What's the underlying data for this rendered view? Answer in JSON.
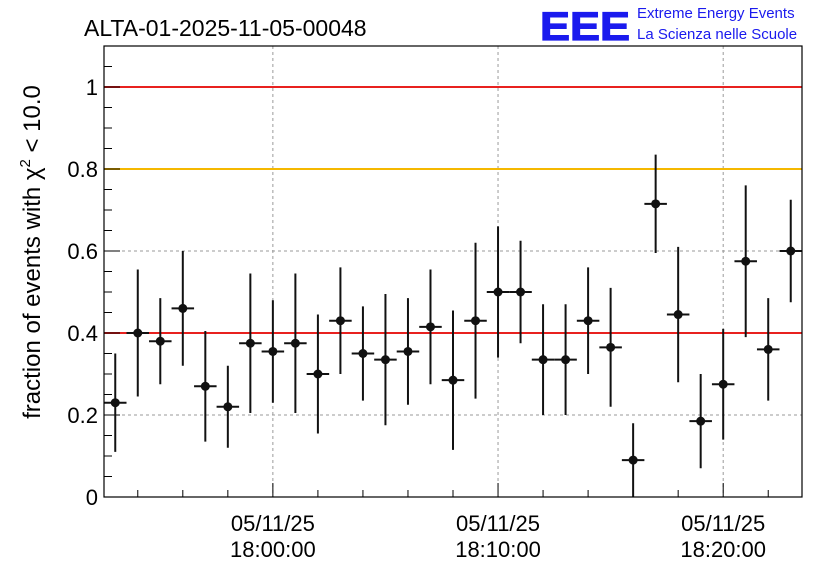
{
  "chart_data": {
    "type": "scatter",
    "title": "ALTA-01-2025-11-05-00048",
    "logo": {
      "letters": "EEE",
      "line1": "Extreme Energy Events",
      "line2": "La Scienza nelle Scuole",
      "color": "#1a1aee"
    },
    "ylabel_pre": "fraction of events with ",
    "ylabel_chi": "χ",
    "ylabel_sup": "2",
    "ylabel_post": " < 10.0",
    "ylim": [
      0,
      1.1
    ],
    "yticks": [
      {
        "value": 0,
        "label": "0"
      },
      {
        "value": 0.2,
        "label": "0.2"
      },
      {
        "value": 0.4,
        "label": "0.4"
      },
      {
        "value": 0.6,
        "label": "0.6"
      },
      {
        "value": 0.8,
        "label": "0.8"
      },
      {
        "value": 1,
        "label": "1"
      }
    ],
    "xlim_minutes": [
      -7.5,
      23.5
    ],
    "xticks": [
      {
        "minute": 0,
        "date": "05/11/25",
        "time": "18:00:00"
      },
      {
        "minute": 10,
        "date": "05/11/25",
        "time": "18:10:00"
      },
      {
        "minute": 20,
        "date": "05/11/25",
        "time": "18:20:00"
      }
    ],
    "grid": true,
    "reference_lines": [
      {
        "value": 1.0,
        "color": "#e8211f"
      },
      {
        "value": 0.8,
        "color": "#f5b800"
      },
      {
        "value": 0.4,
        "color": "#e8211f"
      }
    ],
    "marker_color": "#111111",
    "points": [
      {
        "x": -7,
        "y": 0.23,
        "err": 0.12
      },
      {
        "x": -6,
        "y": 0.4,
        "err": 0.155
      },
      {
        "x": -5,
        "y": 0.38,
        "err": 0.105
      },
      {
        "x": -4,
        "y": 0.46,
        "err": 0.14
      },
      {
        "x": -3,
        "y": 0.27,
        "err": 0.135
      },
      {
        "x": -2,
        "y": 0.22,
        "err": 0.1
      },
      {
        "x": -1,
        "y": 0.375,
        "err": 0.17
      },
      {
        "x": 0,
        "y": 0.355,
        "err": 0.125
      },
      {
        "x": 1,
        "y": 0.375,
        "err": 0.17
      },
      {
        "x": 2,
        "y": 0.3,
        "err": 0.145
      },
      {
        "x": 3,
        "y": 0.43,
        "err": 0.13
      },
      {
        "x": 4,
        "y": 0.35,
        "err": 0.115
      },
      {
        "x": 5,
        "y": 0.335,
        "err": 0.16
      },
      {
        "x": 6,
        "y": 0.355,
        "err": 0.13
      },
      {
        "x": 7,
        "y": 0.415,
        "err": 0.14
      },
      {
        "x": 8,
        "y": 0.285,
        "err": 0.17
      },
      {
        "x": 9,
        "y": 0.43,
        "err": 0.19
      },
      {
        "x": 10,
        "y": 0.5,
        "err": 0.16
      },
      {
        "x": 11,
        "y": 0.5,
        "err": 0.125
      },
      {
        "x": 12,
        "y": 0.335,
        "err": 0.135
      },
      {
        "x": 13,
        "y": 0.335,
        "err": 0.135
      },
      {
        "x": 14,
        "y": 0.43,
        "err": 0.13
      },
      {
        "x": 15,
        "y": 0.365,
        "err": 0.145
      },
      {
        "x": 16,
        "y": 0.09,
        "err": 0.09
      },
      {
        "x": 17,
        "y": 0.715,
        "err": 0.12
      },
      {
        "x": 18,
        "y": 0.445,
        "err": 0.165
      },
      {
        "x": 19,
        "y": 0.185,
        "err": 0.115
      },
      {
        "x": 20,
        "y": 0.275,
        "err": 0.135
      },
      {
        "x": 21,
        "y": 0.575,
        "err": 0.185
      },
      {
        "x": 22,
        "y": 0.36,
        "err": 0.125
      },
      {
        "x": 23,
        "y": 0.6,
        "err": 0.125
      }
    ]
  }
}
